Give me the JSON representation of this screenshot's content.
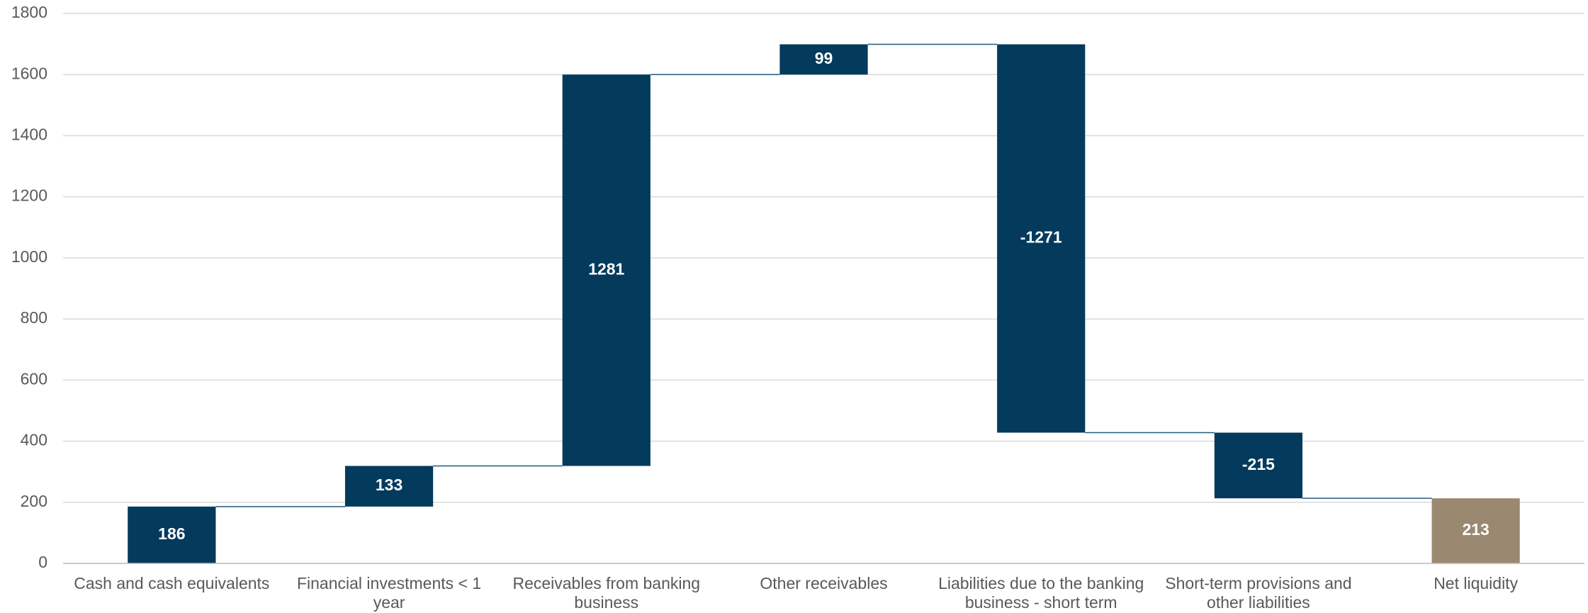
{
  "chart_data": {
    "type": "waterfall",
    "categories": [
      "Cash and cash equivalents",
      "Financial investments < 1 year",
      "Receivables from banking business",
      "Other receivables",
      "Liabilities due to the banking business - short term",
      "Short-term provisions and other liabilities",
      "Net liquidity"
    ],
    "values": [
      186,
      133,
      1281,
      99,
      -1271,
      -215,
      213
    ],
    "is_total": [
      false,
      false,
      false,
      false,
      false,
      false,
      true
    ],
    "color": "#043a5c",
    "total_color": "#9a8870",
    "ylim": [
      0,
      1800
    ],
    "yticks": [
      0,
      200,
      400,
      600,
      800,
      1000,
      1200,
      1400,
      1600,
      1800
    ],
    "grid": true
  }
}
